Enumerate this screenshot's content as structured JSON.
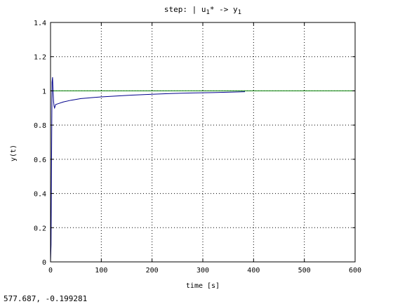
{
  "chart_data": {
    "type": "line",
    "title": {
      "prefix": "step: | u",
      "sub1": "1",
      "mid": "* -> y",
      "sub2": "1"
    },
    "xlabel": "time [s]",
    "ylabel": "y(t)",
    "xlim": [
      0,
      600
    ],
    "ylim": [
      0,
      1.4
    ],
    "xticks": [
      0,
      100,
      200,
      300,
      400,
      500,
      600
    ],
    "yticks": [
      0,
      0.2,
      0.4,
      0.6,
      0.8,
      1,
      1.2,
      1.4
    ],
    "xtick_labels": [
      "0",
      "100",
      "200",
      "300",
      "400",
      "500",
      "600"
    ],
    "ytick_labels": [
      "0",
      "0.2",
      "0.4",
      "0.6",
      "0.8",
      "1",
      "1.2",
      "1.4"
    ],
    "grid": true,
    "series": [
      {
        "color": "#008000",
        "x": [
          0,
          600
        ],
        "y": [
          1,
          1
        ]
      },
      {
        "color": "#00008b",
        "x": [
          0,
          1,
          2,
          3,
          4,
          5,
          6,
          7,
          8,
          10,
          15,
          25,
          40,
          60,
          80,
          100,
          130,
          160,
          200,
          240,
          280,
          320,
          360,
          383
        ],
        "y": [
          0,
          0.1,
          0.6,
          1.05,
          1.08,
          1.0,
          0.94,
          0.91,
          0.9,
          0.92,
          0.925,
          0.935,
          0.945,
          0.955,
          0.96,
          0.965,
          0.97,
          0.975,
          0.98,
          0.985,
          0.988,
          0.99,
          0.993,
          0.995
        ]
      }
    ]
  },
  "status": {
    "coordinates": "577.687, -0.199281"
  }
}
